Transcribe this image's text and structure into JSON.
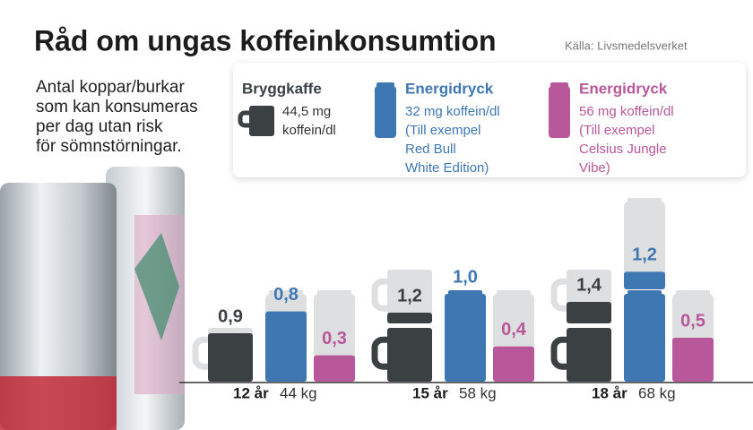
{
  "chart_data": {
    "type": "pictogram",
    "title": "Råd om ungas koffeinkonsumtion",
    "source": "Källa: Livsmedelsverket",
    "subtitle_lines": [
      "Antal koppar/burkar",
      "som kan konsumeras",
      "per dag utan risk",
      "för sömnstörningar."
    ],
    "categories": [
      "12 år",
      "15 år",
      "18 år"
    ],
    "weights": [
      "44 kg",
      "58 kg",
      "68 kg"
    ],
    "series": [
      {
        "name": "Bryggkaffe",
        "shape": "mug",
        "color": "#3b4043",
        "label_color": "#3b4043",
        "description_lines": [
          "44,5 mg",
          "koffein/dl"
        ],
        "values": [
          0.9,
          1.2,
          1.4
        ],
        "value_labels": [
          "0,9",
          "1,2",
          "1,4"
        ]
      },
      {
        "name": "Energidryck",
        "shape": "can",
        "color": "#3f77b3",
        "label_color": "#3f77b3",
        "description_lines": [
          "32 mg koffein/dl",
          "(Till exempel",
          "Red Bull",
          "White Edition)"
        ],
        "values": [
          0.8,
          1.0,
          1.2
        ],
        "value_labels": [
          "0,8",
          "1,0",
          "1,2"
        ]
      },
      {
        "name": "Energidryck",
        "shape": "can",
        "color": "#b8579a",
        "label_color": "#b8579a",
        "description_lines": [
          "56 mg koffein/dl",
          "(Till exempel",
          "Celsius Jungle",
          "Vibe)"
        ],
        "values": [
          0.3,
          0.4,
          0.5
        ],
        "value_labels": [
          "0,3",
          "0,4",
          "0,5"
        ]
      }
    ]
  }
}
